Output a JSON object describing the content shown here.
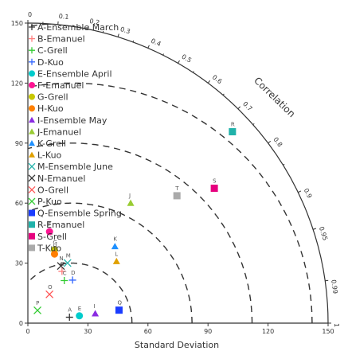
{
  "chart_data": {
    "type": "scatter",
    "subtype": "taylor-diagram",
    "xlabel": "Standard Deviation",
    "arc_label": "Correlation",
    "std_range": [
      0,
      150
    ],
    "std_ticks": [
      "0",
      "30",
      "60",
      "90",
      "120",
      "150"
    ],
    "std_tick_values": [
      0,
      30,
      60,
      90,
      120,
      150
    ],
    "correlation_ticks": [
      "0",
      "0.1",
      "0.2",
      "0.3",
      "0.4",
      "0.5",
      "0.6",
      "0.7",
      "0.8",
      "0.9",
      "0.95",
      "0.99",
      "1"
    ],
    "correlation_tick_values": [
      0,
      0.1,
      0.2,
      0.3,
      0.4,
      0.5,
      0.6,
      0.7,
      0.8,
      0.9,
      0.95,
      0.99,
      1
    ],
    "rms_radii": [
      30,
      60,
      90,
      120,
      150
    ],
    "reference_std": 22,
    "legend_placement": "top-left",
    "series": [
      {
        "code": "A",
        "name": "A-Ensemble March",
        "marker": "plus",
        "color": "#333333",
        "std": 21,
        "corr": 0.99
      },
      {
        "code": "B",
        "name": "B-Emanuel",
        "marker": "plus",
        "color": "#ff7f7f",
        "std": 31,
        "corr": 0.55
      },
      {
        "code": "C",
        "name": "C-Grell",
        "marker": "plus",
        "color": "#33cc33",
        "std": 28,
        "corr": 0.65
      },
      {
        "code": "D",
        "name": "D-Kuo",
        "marker": "plus",
        "color": "#3366ff",
        "std": 31,
        "corr": 0.72
      },
      {
        "code": "E",
        "name": "E-Ensemble April",
        "marker": "circle",
        "color": "#00cccc",
        "std": 26,
        "corr": 0.99
      },
      {
        "code": "F",
        "name": "F-Emanuel",
        "marker": "circle",
        "color": "#ff1493",
        "std": 47,
        "corr": 0.23
      },
      {
        "code": "G",
        "name": "G-Grell",
        "marker": "circle",
        "color": "#c8c800",
        "std": 39,
        "corr": 0.34
      },
      {
        "code": "H",
        "name": "H-Kuo",
        "marker": "circle",
        "color": "#ff7f00",
        "std": 37,
        "corr": 0.36
      },
      {
        "code": "I",
        "name": "I-Ensemble May",
        "marker": "triangle",
        "color": "#8a2be2",
        "std": 34,
        "corr": 0.99
      },
      {
        "code": "J",
        "name": "J-Emanuel",
        "marker": "triangle",
        "color": "#99cc33",
        "std": 79,
        "corr": 0.65
      },
      {
        "code": "K",
        "name": "K-Grell",
        "marker": "triangle",
        "color": "#1e90ff",
        "std": 58,
        "corr": 0.75
      },
      {
        "code": "L",
        "name": "L-Kuo",
        "marker": "triangle",
        "color": "#e0a000",
        "std": 54,
        "corr": 0.82
      },
      {
        "code": "M",
        "name": "M-Ensemble June",
        "marker": "x",
        "color": "#20b2aa",
        "std": 36,
        "corr": 0.55
      },
      {
        "code": "N",
        "name": "N-Emanuel",
        "marker": "x",
        "color": "#333333",
        "std": 33,
        "corr": 0.5
      },
      {
        "code": "O",
        "name": "O-Grell",
        "marker": "x",
        "color": "#ff5555",
        "std": 18,
        "corr": 0.6
      },
      {
        "code": "P",
        "name": "P-Kuo",
        "marker": "x",
        "color": "#33cc33",
        "std": 8,
        "corr": 0.6
      },
      {
        "code": "Q",
        "name": "Q-Ensemble Spring",
        "marker": "square",
        "color": "#1a3cff",
        "std": 46,
        "corr": 0.99
      },
      {
        "code": "R",
        "name": "R-Emanuel",
        "marker": "square",
        "color": "#20b2aa",
        "std": 140,
        "corr": 0.73
      },
      {
        "code": "S",
        "name": "S-Grell",
        "marker": "square",
        "color": "#e6007e",
        "std": 115,
        "corr": 0.81
      },
      {
        "code": "T",
        "name": "T-Kuo",
        "marker": "square",
        "color": "#aaaaaa",
        "std": 98,
        "corr": 0.76
      }
    ]
  }
}
